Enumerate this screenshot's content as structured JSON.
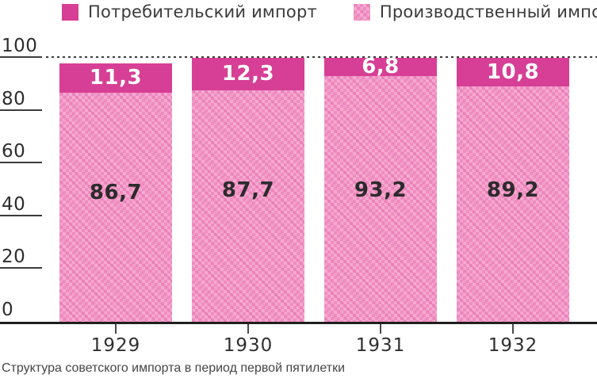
{
  "legend": {
    "items": [
      {
        "label": "Потребительский импорт",
        "swatch": "solid"
      },
      {
        "label": "Производственный импорт",
        "swatch": "pattern"
      }
    ]
  },
  "caption": "Структура советского импорта в период первой пятилетки",
  "colors": {
    "consumer_solid": "#d63f95",
    "production_base": "#f08cc0",
    "production_light": "#f8b4d6",
    "axis_text": "#2d2d2d",
    "bar_value_on_magenta": "#ffffff",
    "bar_value_on_pink": "#2b2b2b"
  },
  "chart_data": {
    "type": "bar",
    "stacked": true,
    "title": "",
    "caption": "Структура советского импорта в период первой пятилетки",
    "categories": [
      "1929",
      "1930",
      "1931",
      "1932"
    ],
    "series": [
      {
        "name": "Потребительский импорт",
        "values": [
          11.3,
          12.3,
          6.8,
          10.8
        ],
        "labels": [
          "11,3",
          "12,3",
          "6,8",
          "10,8"
        ],
        "color": "#d63f95",
        "fill": "solid"
      },
      {
        "name": "Производственный импорт",
        "values": [
          86.7,
          87.7,
          93.2,
          89.2
        ],
        "labels": [
          "86,7",
          "87,7",
          "93,2",
          "89,2"
        ],
        "color": "#f08cc0",
        "fill": "checker-pattern"
      }
    ],
    "xlabel": "",
    "ylabel": "",
    "ylim": [
      0,
      100
    ],
    "yticks": [
      0,
      20,
      40,
      60,
      80,
      100
    ],
    "grid": "dashed-line-at-100-only",
    "legend_position": "top"
  }
}
